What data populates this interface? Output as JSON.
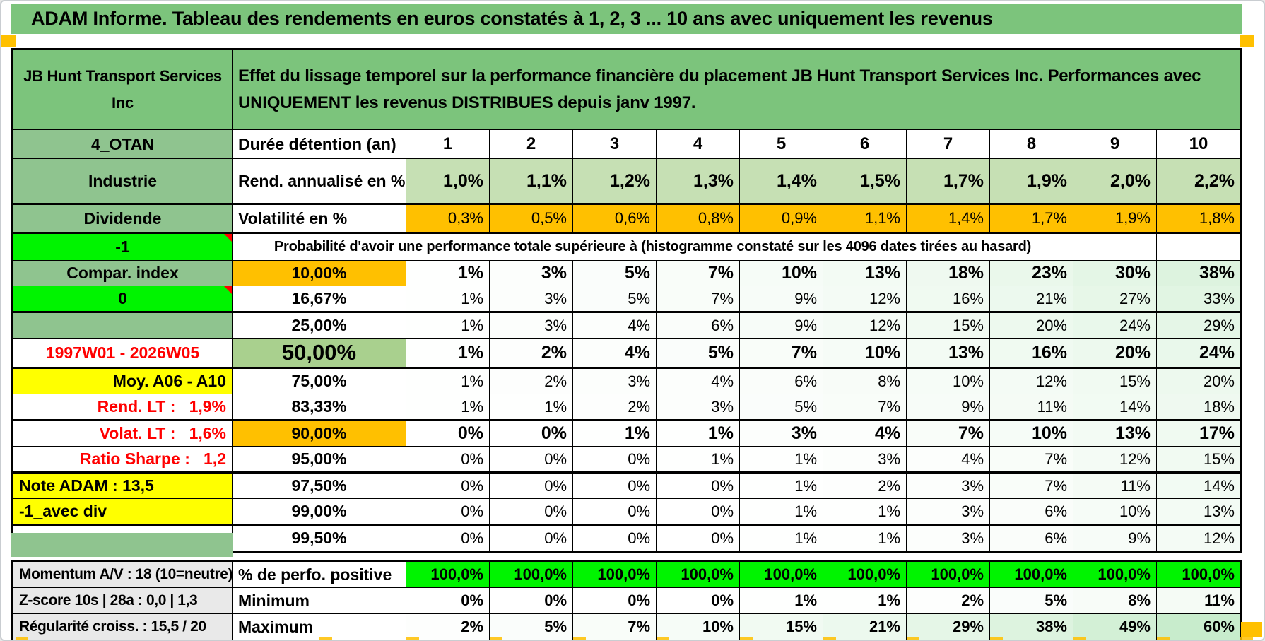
{
  "title": "ADAM Informe. Tableau des rendements en euros constatés à 1, 2, 3 ... 10 ans avec uniquement les revenus",
  "header": {
    "company": "JB Hunt Transport Services Inc",
    "description": "Effet du lissage temporel sur la performance financière du placement JB Hunt Transport Services Inc. Performances avec UNIQUEMENT les revenus DISTRIBUES depuis janv 1997."
  },
  "duration_label": "Durée détention (an)",
  "columns": [
    "1",
    "2",
    "3",
    "4",
    "5",
    "6",
    "7",
    "8",
    "9",
    "10"
  ],
  "stat_rows": [
    {
      "label": "Rend. annualisé en %",
      "values": [
        "1,0%",
        "1,1%",
        "1,2%",
        "1,3%",
        "1,4%",
        "1,5%",
        "1,7%",
        "1,9%",
        "2,0%",
        "2,2%"
      ]
    },
    {
      "label": "Volatilité en %",
      "values": [
        "0,3%",
        "0,5%",
        "0,6%",
        "0,8%",
        "0,9%",
        "1,1%",
        "1,4%",
        "1,7%",
        "1,9%",
        "1,8%"
      ]
    }
  ],
  "probability_note": "Probabilité d'avoir une performance totale supérieure à (histogramme constaté sur les 4096 dates tirées au hasard)",
  "probability_rows": [
    {
      "threshold": "10,00%",
      "emphasis": "orange",
      "values": [
        "1%",
        "3%",
        "5%",
        "7%",
        "10%",
        "13%",
        "18%",
        "23%",
        "30%",
        "38%"
      ]
    },
    {
      "threshold": "16,67%",
      "values": [
        "1%",
        "3%",
        "5%",
        "7%",
        "9%",
        "12%",
        "16%",
        "21%",
        "27%",
        "33%"
      ]
    },
    {
      "threshold": "25,00%",
      "values": [
        "1%",
        "3%",
        "4%",
        "6%",
        "9%",
        "12%",
        "15%",
        "20%",
        "24%",
        "29%"
      ]
    },
    {
      "threshold": "50,00%",
      "emphasis": "median",
      "values": [
        "1%",
        "2%",
        "4%",
        "5%",
        "7%",
        "10%",
        "13%",
        "16%",
        "20%",
        "24%"
      ]
    },
    {
      "threshold": "75,00%",
      "values": [
        "1%",
        "2%",
        "3%",
        "4%",
        "6%",
        "8%",
        "10%",
        "12%",
        "15%",
        "20%"
      ]
    },
    {
      "threshold": "83,33%",
      "values": [
        "1%",
        "1%",
        "2%",
        "3%",
        "5%",
        "7%",
        "9%",
        "11%",
        "14%",
        "18%"
      ]
    },
    {
      "threshold": "90,00%",
      "emphasis": "orange",
      "values": [
        "0%",
        "0%",
        "1%",
        "1%",
        "3%",
        "4%",
        "7%",
        "10%",
        "13%",
        "17%"
      ]
    },
    {
      "threshold": "95,00%",
      "values": [
        "0%",
        "0%",
        "0%",
        "1%",
        "1%",
        "3%",
        "4%",
        "7%",
        "12%",
        "15%"
      ]
    },
    {
      "threshold": "97,50%",
      "values": [
        "0%",
        "0%",
        "0%",
        "0%",
        "1%",
        "2%",
        "3%",
        "7%",
        "11%",
        "14%"
      ]
    },
    {
      "threshold": "99,00%",
      "values": [
        "0%",
        "0%",
        "0%",
        "0%",
        "1%",
        "1%",
        "3%",
        "6%",
        "10%",
        "13%"
      ]
    },
    {
      "threshold": "99,50%",
      "values": [
        "0%",
        "0%",
        "0%",
        "0%",
        "1%",
        "1%",
        "3%",
        "6%",
        "9%",
        "12%"
      ]
    }
  ],
  "left_labels": [
    {
      "text": "4_OTAN",
      "fill": "green",
      "align": "center"
    },
    {
      "text": "Industrie",
      "fill": "green",
      "align": "center"
    },
    {
      "text": "Dividende",
      "fill": "green",
      "align": "center"
    },
    {
      "text": "-1",
      "fill": "bright",
      "align": "center",
      "comment": true
    },
    {
      "text": "Compar. index",
      "fill": "green",
      "align": "center"
    },
    {
      "text": "0",
      "fill": "bright",
      "align": "center",
      "comment": true
    },
    {
      "text": "",
      "fill": "green",
      "align": "center"
    },
    {
      "text": "1997W01 - 2026W05",
      "fill": "white",
      "align": "center",
      "text_color": "red"
    },
    {
      "text": "Moy. A06 - A10",
      "fill": "yellow",
      "align": "right"
    },
    {
      "text": "Rend. LT :   1,9%",
      "fill": "white",
      "align": "right",
      "text_color": "red"
    },
    {
      "text": "Volat. LT :   1,6%",
      "fill": "white",
      "align": "right",
      "text_color": "red"
    },
    {
      "text": "Ratio Sharpe :   1,2",
      "fill": "white",
      "align": "right",
      "text_color": "red"
    },
    {
      "text": "Note ADAM : 13,5",
      "fill": "yellow",
      "align": "left"
    },
    {
      "text": "-1_avec div",
      "fill": "yellow",
      "align": "left"
    },
    {
      "text": "",
      "fill": "white",
      "align": "center"
    }
  ],
  "bottom_rows": [
    {
      "left": "Momentum A/V : 18 (10=neutre)",
      "label": "% de perfo. positive",
      "fill": "bright",
      "values": [
        "100,0%",
        "100,0%",
        "100,0%",
        "100,0%",
        "100,0%",
        "100,0%",
        "100,0%",
        "100,0%",
        "100,0%",
        "100,0%"
      ]
    },
    {
      "left": "Z-score 10s | 28a : 0,0 | 1,3",
      "label": "Minimum",
      "values": [
        "0%",
        "0%",
        "0%",
        "0%",
        "1%",
        "1%",
        "2%",
        "5%",
        "8%",
        "11%"
      ]
    },
    {
      "left": "Régularité croiss. : 15,5 / 20",
      "label": "Maximum",
      "values": [
        "2%",
        "5%",
        "7%",
        "10%",
        "15%",
        "21%",
        "29%",
        "38%",
        "49%",
        "60%"
      ]
    }
  ],
  "colors": {
    "band": "#7cc47c",
    "label_green": "#8fc48f",
    "lightgreen": "#c6e0b4",
    "median": "#a9d08e",
    "orange": "#ffc000",
    "bright": "#00f400",
    "yellow": "#ffff00",
    "red": "#ff0000",
    "gray": "#e9e9e9"
  }
}
